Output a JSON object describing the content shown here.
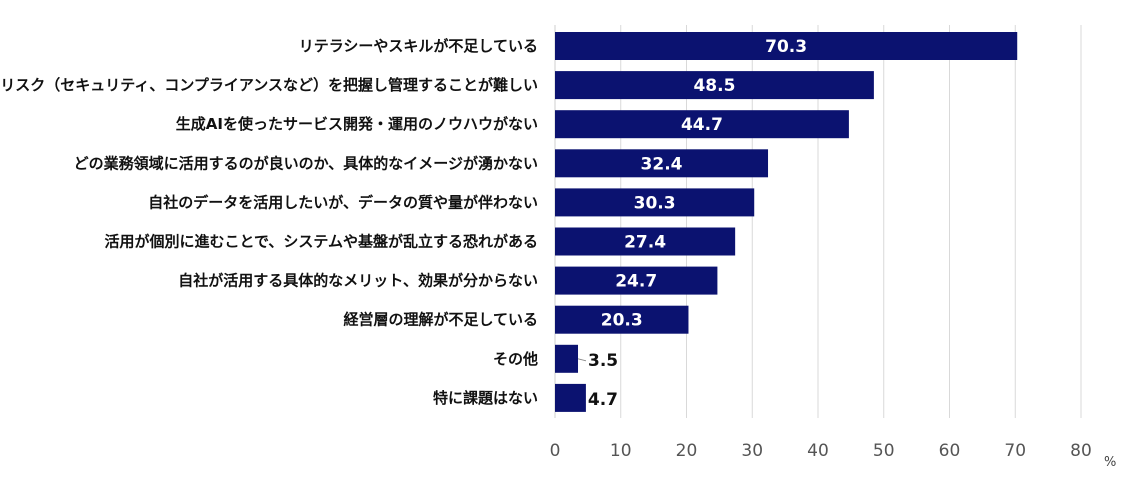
{
  "chart_data": {
    "type": "bar",
    "orientation": "horizontal",
    "categories": [
      "リテラシーやスキルが不足している",
      "リスク（セキュリティ、コンプライアンスなど）を把握し管理することが難しい",
      "生成AIを使ったサービス開発・運用のノウハウがない",
      "どの業務領域に活用するのが良いのか、具体的なイメージが湧かない",
      "自社のデータを活用したいが、データの質や量が伴わない",
      "活用が個別に進むことで、システムや基盤が乱立する恐れがある",
      "自社が活用する具体的なメリット、効果が分からない",
      "経営層の理解が不足している",
      "その他",
      "特に課題はない"
    ],
    "values": [
      70.3,
      48.5,
      44.7,
      32.4,
      30.3,
      27.4,
      24.7,
      20.3,
      3.5,
      4.7
    ],
    "value_labels": [
      "70.3",
      "48.5",
      "44.7",
      "32.4",
      "30.3",
      "27.4",
      "24.7",
      "20.3",
      "3.5",
      "4.7"
    ],
    "xlim": [
      0,
      80
    ],
    "x_ticks": [
      "0",
      "10",
      "20",
      "30",
      "40",
      "50",
      "60",
      "70",
      "80"
    ],
    "x_unit": "%",
    "grid": "vertical",
    "bar_color": "#0b1270",
    "grid_color": "#d9d9d9"
  }
}
